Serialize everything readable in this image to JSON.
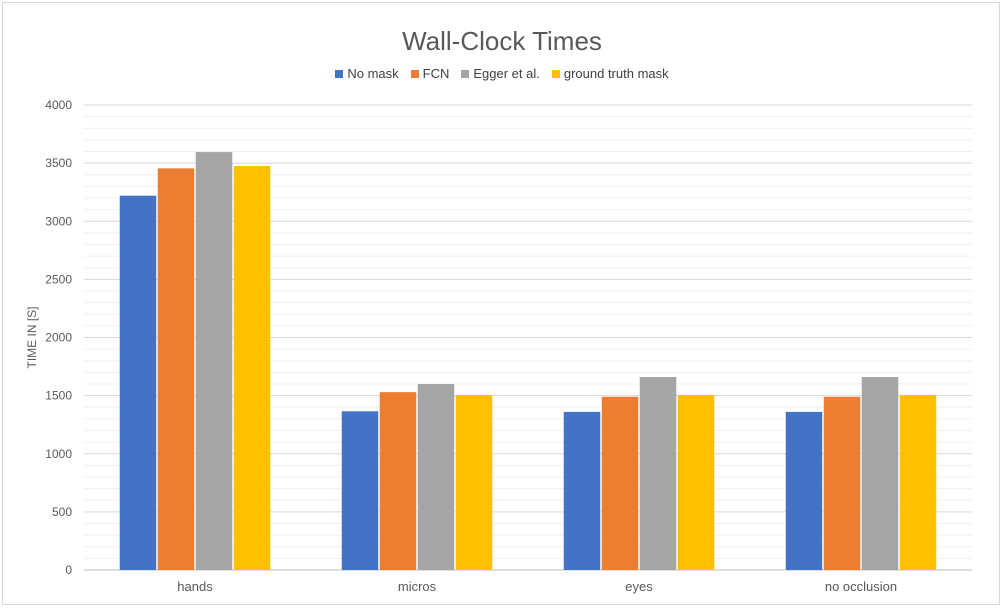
{
  "chart_data": {
    "type": "bar",
    "title": "Wall-Clock Times",
    "ylabel": "TIME IN [S]",
    "xlabel": "",
    "categories": [
      "hands",
      "micros",
      "eyes",
      "no occlusion"
    ],
    "series": [
      {
        "name": "No mask",
        "color": "#4472C4",
        "values": [
          3220,
          1365,
          1360,
          1360
        ]
      },
      {
        "name": "FCN",
        "color": "#ED7D31",
        "values": [
          3455,
          1530,
          1490,
          1490
        ]
      },
      {
        "name": "Egger et al.",
        "color": "#A5A5A5",
        "values": [
          3595,
          1600,
          1660,
          1660
        ]
      },
      {
        "name": "ground truth mask",
        "color": "#FFC000",
        "values": [
          3475,
          1505,
          1505,
          1505
        ]
      }
    ],
    "ylim": [
      0,
      4000
    ],
    "yticks": [
      0,
      500,
      1000,
      1500,
      2000,
      2500,
      3000,
      3500,
      4000
    ],
    "grid": true,
    "legend_position": "top"
  }
}
